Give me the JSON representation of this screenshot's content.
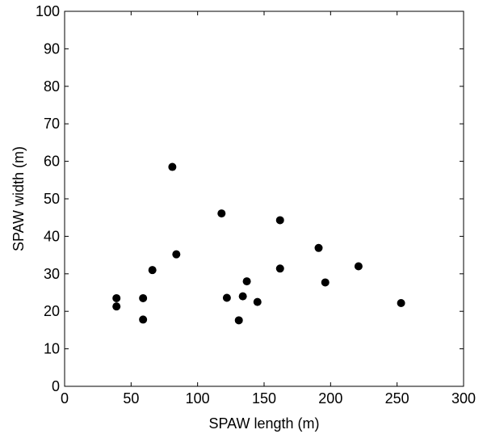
{
  "chart_data": {
    "type": "scatter",
    "title": "",
    "xlabel": "SPAW length (m)",
    "ylabel": "SPAW width (m)",
    "xlim": [
      0,
      300
    ],
    "ylim": [
      0,
      100
    ],
    "xticks": [
      0,
      50,
      100,
      150,
      200,
      250,
      300
    ],
    "yticks": [
      0,
      10,
      20,
      30,
      40,
      50,
      60,
      70,
      80,
      90,
      100
    ],
    "xtick_labels": [
      "0",
      "50",
      "100",
      "150",
      "200",
      "250",
      "300"
    ],
    "ytick_labels": [
      "0",
      "10",
      "20",
      "30",
      "40",
      "50",
      "60",
      "70",
      "80",
      "90",
      "100"
    ],
    "grid": false,
    "marker_color": "#000000",
    "series": [
      {
        "points": [
          [
            39,
            23.5
          ],
          [
            39,
            21.3
          ],
          [
            59,
            23.5
          ],
          [
            59,
            17.8
          ],
          [
            66,
            31.0
          ],
          [
            81,
            58.5
          ],
          [
            84,
            35.2
          ],
          [
            118,
            46.1
          ],
          [
            122,
            23.6
          ],
          [
            131,
            17.6
          ],
          [
            134,
            24.0
          ],
          [
            137,
            28.0
          ],
          [
            145,
            22.5
          ],
          [
            162,
            44.3
          ],
          [
            162,
            31.4
          ],
          [
            191,
            36.9
          ],
          [
            196,
            27.7
          ],
          [
            221,
            32.0
          ],
          [
            253,
            22.2
          ]
        ]
      }
    ]
  }
}
